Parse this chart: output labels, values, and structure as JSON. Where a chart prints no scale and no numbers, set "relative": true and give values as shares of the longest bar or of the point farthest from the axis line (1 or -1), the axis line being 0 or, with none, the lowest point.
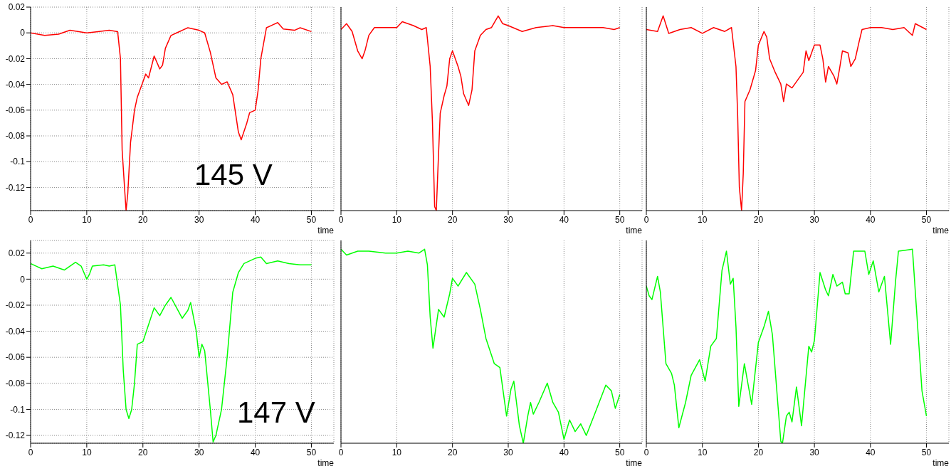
{
  "chart_data": [
    {
      "type": "line",
      "xlabel": "time",
      "annotations": [
        "145 V"
      ],
      "grid": true,
      "marker": "none",
      "line_style": "solid",
      "xlim": [
        0,
        54
      ],
      "xticks": [
        0,
        10,
        20,
        30,
        40,
        50
      ],
      "ylim": [
        -0.138,
        0.02
      ],
      "yticks": [
        0.02,
        0,
        -0.02,
        -0.04,
        -0.06,
        -0.08,
        -0.1,
        -0.12
      ],
      "series": [
        {
          "color": "#ff0000",
          "x": [
            0,
            2.5,
            5,
            7,
            10,
            12,
            14,
            15.5,
            16,
            16.3,
            16.8,
            17,
            17.3,
            17.8,
            18.5,
            19,
            20,
            20.5,
            21,
            22,
            23,
            23.5,
            24,
            25,
            26,
            28,
            30,
            31,
            32,
            33,
            34,
            35,
            36,
            37,
            37.5,
            38.5,
            39,
            40,
            40.5,
            41,
            41.5,
            42,
            43,
            44,
            45,
            47,
            48,
            50
          ],
          "values": [
            0,
            -0.002,
            -0.001,
            0.002,
            0,
            0.001,
            0.002,
            0.001,
            -0.02,
            -0.091,
            -0.125,
            -0.138,
            -0.125,
            -0.085,
            -0.06,
            -0.05,
            -0.038,
            -0.032,
            -0.035,
            -0.018,
            -0.028,
            -0.025,
            -0.012,
            -0.002,
            0,
            0.004,
            0.002,
            0,
            -0.015,
            -0.035,
            -0.04,
            -0.038,
            -0.048,
            -0.077,
            -0.083,
            -0.07,
            -0.062,
            -0.06,
            -0.045,
            -0.02,
            -0.008,
            0.004,
            0.006,
            0.008,
            0.003,
            0.002,
            0.004,
            0.001
          ]
        }
      ]
    },
    {
      "type": "line",
      "xlabel": "time",
      "grid": "x",
      "relative": true,
      "marker": "none",
      "line_style": "solid",
      "xlim": [
        0,
        54
      ],
      "xticks": [
        0,
        10,
        20,
        30,
        40,
        50
      ],
      "series": [
        {
          "color": "#ff0000",
          "x": [
            0,
            1,
            2,
            3,
            3.8,
            4.3,
            5,
            6,
            8,
            10,
            11,
            13,
            14.5,
            15.3,
            16,
            16.4,
            16.8,
            17.1,
            17.4,
            17.8,
            18.5,
            19,
            19.5,
            20,
            21,
            21.5,
            22,
            22.9,
            23.5,
            24,
            25,
            26,
            27,
            28.2,
            29,
            30,
            32.5,
            35,
            38,
            40,
            43,
            45,
            47,
            49,
            50
          ],
          "values": [
            0.93,
            0.96,
            0.92,
            0.82,
            0.78,
            0.82,
            0.9,
            0.94,
            0.94,
            0.94,
            0.97,
            0.95,
            0.93,
            0.94,
            0.74,
            0.46,
            0.02,
            0,
            0.22,
            0.5,
            0.59,
            0.64,
            0.78,
            0.82,
            0.74,
            0.69,
            0.6,
            0.54,
            0.62,
            0.82,
            0.9,
            0.93,
            0.94,
            1,
            0.96,
            0.95,
            0.92,
            0.94,
            0.95,
            0.94,
            0.94,
            0.94,
            0.94,
            0.93,
            0.94
          ]
        }
      ]
    },
    {
      "type": "line",
      "xlabel": "time",
      "grid": "x",
      "relative": true,
      "marker": "none",
      "line_style": "solid",
      "xlim": [
        0,
        54
      ],
      "xticks": [
        0,
        10,
        20,
        30,
        40,
        50
      ],
      "series": [
        {
          "color": "#ff0000",
          "x": [
            0,
            2,
            3,
            4,
            6,
            8,
            10,
            12,
            14,
            15.2,
            16,
            16.3,
            16.6,
            17,
            17.3,
            17.6,
            18.5,
            19.5,
            20,
            21,
            21.5,
            22,
            23,
            24,
            24.5,
            25,
            26,
            27,
            28,
            28.5,
            29,
            30,
            31,
            31.5,
            32,
            32.5,
            33.5,
            34,
            34.5,
            35,
            36,
            36.5,
            37.3,
            38,
            38.5,
            40,
            42,
            44,
            46,
            47.5,
            48,
            50
          ],
          "values": [
            0.93,
            0.92,
            1,
            0.91,
            0.93,
            0.94,
            0.91,
            0.94,
            0.92,
            0.94,
            0.74,
            0.49,
            0.12,
            0,
            0.19,
            0.56,
            0.62,
            0.72,
            0.85,
            0.92,
            0.89,
            0.78,
            0.71,
            0.65,
            0.56,
            0.65,
            0.63,
            0.67,
            0.71,
            0.82,
            0.77,
            0.85,
            0.85,
            0.78,
            0.66,
            0.74,
            0.69,
            0.65,
            0.73,
            0.82,
            0.81,
            0.74,
            0.78,
            0.87,
            0.93,
            0.94,
            0.94,
            0.93,
            0.94,
            0.9,
            0.96,
            0.93
          ]
        }
      ]
    },
    {
      "type": "line",
      "xlabel": "time",
      "annotations": [
        "147 V"
      ],
      "grid": true,
      "marker": "none",
      "line_style": "solid",
      "xlim": [
        0,
        54
      ],
      "xticks": [
        0,
        10,
        20,
        30,
        40,
        50
      ],
      "ylim": [
        -0.126,
        0.0297
      ],
      "yticks": [
        0.02,
        0,
        -0.02,
        -0.04,
        -0.06,
        -0.08,
        -0.1,
        -0.12
      ],
      "series": [
        {
          "color": "#00ff00",
          "x": [
            0,
            1,
            2,
            4,
            6,
            8,
            9,
            10,
            10.5,
            11,
            13,
            14,
            15,
            16,
            16.5,
            17,
            17.5,
            18,
            18.5,
            19,
            20,
            21,
            22,
            23,
            24,
            25,
            26,
            27,
            28,
            28.5,
            29.5,
            30,
            30.5,
            31,
            32,
            32.5,
            33,
            34,
            35,
            36,
            37,
            38,
            40,
            41,
            42,
            44,
            46,
            48,
            50
          ],
          "values": [
            0.012,
            0.01,
            0.008,
            0.01,
            0.007,
            0.013,
            0.01,
            0,
            0.004,
            0.01,
            0.011,
            0.01,
            0.011,
            -0.02,
            -0.07,
            -0.1,
            -0.107,
            -0.1,
            -0.08,
            -0.05,
            -0.048,
            -0.035,
            -0.022,
            -0.028,
            -0.02,
            -0.014,
            -0.022,
            -0.03,
            -0.024,
            -0.018,
            -0.04,
            -0.06,
            -0.05,
            -0.055,
            -0.1,
            -0.125,
            -0.12,
            -0.1,
            -0.06,
            -0.01,
            0.005,
            0.012,
            0.016,
            0.017,
            0.012,
            0.014,
            0.012,
            0.011,
            0.011
          ]
        }
      ]
    },
    {
      "type": "line",
      "xlabel": "time",
      "grid": "x",
      "relative": true,
      "marker": "none",
      "line_style": "solid",
      "xlim": [
        0,
        54
      ],
      "xticks": [
        0,
        10,
        20,
        30,
        40,
        50
      ],
      "series": [
        {
          "color": "#00ff00",
          "x": [
            0,
            1,
            3,
            5,
            8,
            10,
            12,
            14,
            15,
            15.5,
            16,
            16.5,
            17.5,
            18.5,
            19.5,
            20,
            21,
            22.5,
            24,
            25,
            26,
            27.5,
            28.5,
            29.7,
            30.5,
            31,
            32,
            32.7,
            33.5,
            34,
            34.5,
            35.5,
            37,
            38,
            39,
            40,
            41,
            42,
            43,
            44,
            45.5,
            47.5,
            48.5,
            49.2,
            50
          ],
          "values": [
            1,
            0.97,
            0.99,
            0.99,
            0.98,
            0.98,
            0.99,
            0.98,
            1,
            0.92,
            0.65,
            0.49,
            0.69,
            0.65,
            0.77,
            0.85,
            0.81,
            0.88,
            0.82,
            0.69,
            0.54,
            0.41,
            0.39,
            0.14,
            0.28,
            0.32,
            0.09,
            0,
            0.14,
            0.21,
            0.15,
            0.21,
            0.31,
            0.21,
            0.16,
            0.02,
            0.12,
            0.06,
            0.1,
            0.04,
            0.15,
            0.3,
            0.27,
            0.18,
            0.25
          ]
        }
      ]
    },
    {
      "type": "line",
      "xlabel": "time",
      "grid": "x",
      "relative": true,
      "marker": "none",
      "line_style": "solid",
      "xlim": [
        0,
        54
      ],
      "xticks": [
        0,
        10,
        20,
        30,
        40,
        50
      ],
      "series": [
        {
          "color": "#00ff00",
          "x": [
            0,
            0.5,
            1,
            2,
            2.5,
            3.5,
            4.5,
            5,
            5.8,
            7,
            8,
            9.5,
            10.5,
            11.5,
            12.5,
            13.5,
            14.3,
            15,
            15.5,
            16,
            16.5,
            17.5,
            18.8,
            20,
            21,
            21.8,
            22.5,
            24,
            24.3,
            25,
            25.5,
            26,
            26.8,
            27.7,
            29,
            29.5,
            30,
            31,
            32,
            32.5,
            33.3,
            34,
            35,
            35.5,
            36.2,
            37,
            39,
            39.7,
            40.5,
            41.5,
            42.5,
            43.6,
            44.5,
            45,
            47.5,
            48.5,
            49.2,
            50
          ],
          "values": [
            0.81,
            0.76,
            0.74,
            0.86,
            0.78,
            0.41,
            0.36,
            0.3,
            0.08,
            0.21,
            0.35,
            0.43,
            0.32,
            0.5,
            0.54,
            0.89,
            0.99,
            0.82,
            0.85,
            0.6,
            0.19,
            0.41,
            0.2,
            0.52,
            0.6,
            0.68,
            0.56,
            0.01,
            0,
            0.14,
            0.16,
            0.11,
            0.29,
            0.09,
            0.5,
            0.47,
            0.53,
            0.88,
            0.79,
            0.76,
            0.87,
            0.81,
            0.83,
            0.77,
            0.77,
            0.99,
            0.99,
            0.87,
            0.94,
            0.78,
            0.86,
            0.51,
            0.84,
            0.99,
            1,
            0.57,
            0.27,
            0.14
          ]
        }
      ]
    }
  ]
}
